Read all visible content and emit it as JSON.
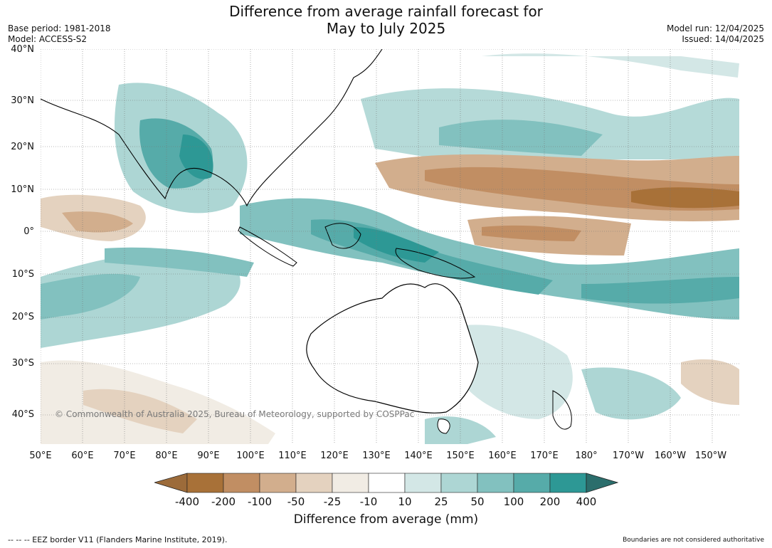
{
  "title": {
    "line1": "Difference from average rainfall forecast for",
    "line2": "May to July 2025"
  },
  "meta_left": {
    "base_period": "Base period: 1981-2018",
    "model": "Model: ACCESS-S2"
  },
  "meta_right": {
    "model_run": "Model run: 12/04/2025",
    "issued": "Issued: 14/04/2025"
  },
  "map": {
    "lat_labels": [
      "40°N",
      "30°N",
      "20°N",
      "10°N",
      "0°",
      "10°S",
      "20°S",
      "30°S",
      "40°S"
    ],
    "lon_labels": [
      "50°E",
      "60°E",
      "70°E",
      "80°E",
      "90°E",
      "100°E",
      "110°E",
      "120°E",
      "130°E",
      "140°E",
      "150°E",
      "160°E",
      "170°E",
      "180°",
      "170°W",
      "160°W",
      "150°W"
    ],
    "copyright": "© Commonwealth of Australia 2025, Bureau of Meteorology, supported by COSPPac",
    "ocean_color": "#ffffff",
    "land_outline_color": "#000000"
  },
  "colorbar": {
    "title": "Difference from average (mm)",
    "labels": [
      "-400",
      "-200",
      "-100",
      "-50",
      "-25",
      "-10",
      "10",
      "25",
      "50",
      "100",
      "200",
      "400"
    ],
    "colors": [
      "#9c6b3a",
      "#a87138",
      "#c18e63",
      "#d2ae8d",
      "#e4d2bf",
      "#f1ece4",
      "#ffffff",
      "#d3e7e6",
      "#add6d4",
      "#82c1bf",
      "#56aba9",
      "#2d9895",
      "#2b6e6c"
    ]
  },
  "footer": {
    "left": "--  --  -- EEZ border V11 (Flanders Marine Institute, 2019).",
    "right": "Boundaries are not considered authoritative"
  }
}
